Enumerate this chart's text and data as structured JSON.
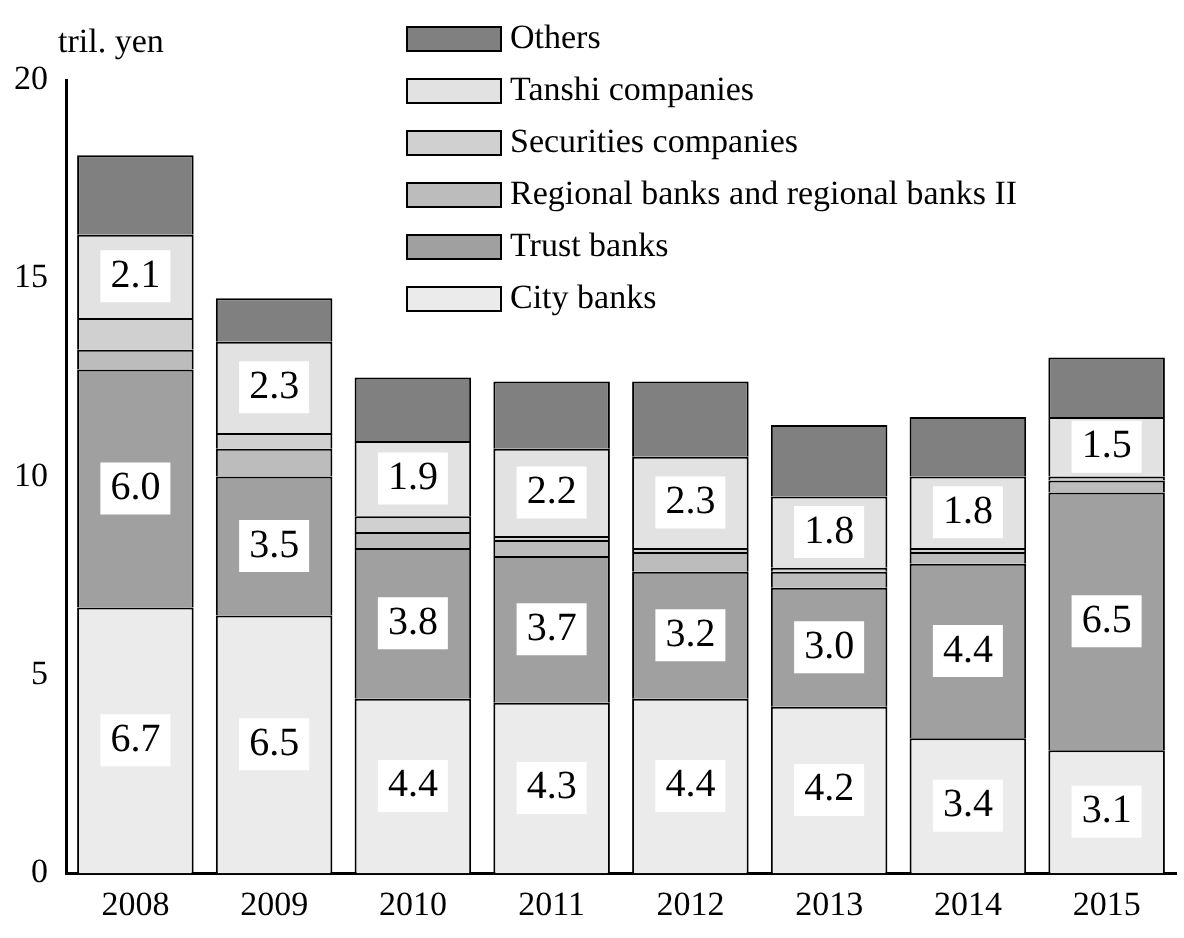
{
  "chart_data": {
    "type": "bar",
    "stacked": true,
    "ylabel": "tril. yen",
    "categories": [
      "2008",
      "2009",
      "2010",
      "2011",
      "2012",
      "2013",
      "2014",
      "2015"
    ],
    "series": [
      {
        "name": "City banks",
        "color": "#ebebeb",
        "values": [
          6.7,
          6.5,
          4.4,
          4.3,
          4.4,
          4.2,
          3.4,
          3.1
        ],
        "value_labels": [
          "6.7",
          "6.5",
          "4.4",
          "4.3",
          "4.4",
          "4.2",
          "3.4",
          "3.1"
        ]
      },
      {
        "name": "Trust banks",
        "color": "#a0a0a0",
        "values": [
          6.0,
          3.5,
          3.8,
          3.7,
          3.2,
          3.0,
          4.4,
          6.5
        ],
        "value_labels": [
          "6.0",
          "3.5",
          "3.8",
          "3.7",
          "3.2",
          "3.0",
          "4.4",
          "6.5"
        ]
      },
      {
        "name": "Regional banks and regional banks II",
        "color": "#bcbcbc",
        "values": [
          0.5,
          0.7,
          0.4,
          0.4,
          0.5,
          0.4,
          0.3,
          0.3
        ]
      },
      {
        "name": "Securities companies",
        "color": "#d0d0d0",
        "values": [
          0.8,
          0.4,
          0.4,
          0.1,
          0.1,
          0.1,
          0.1,
          0.1
        ]
      },
      {
        "name": "Tanshi companies",
        "color": "#e2e2e2",
        "values": [
          2.1,
          2.3,
          1.9,
          2.2,
          2.3,
          1.8,
          1.8,
          1.5
        ],
        "value_labels": [
          "2.1",
          "2.3",
          "1.9",
          "2.2",
          "2.3",
          "1.8",
          "1.8",
          "1.5"
        ]
      },
      {
        "name": "Others",
        "color": "#808080",
        "values": [
          2.0,
          1.1,
          1.6,
          1.7,
          1.9,
          1.8,
          1.5,
          1.5
        ]
      }
    ],
    "ylim": [
      0,
      20
    ],
    "yticks": [
      0,
      5,
      10,
      15,
      20
    ],
    "grid": false,
    "legend": "top"
  }
}
